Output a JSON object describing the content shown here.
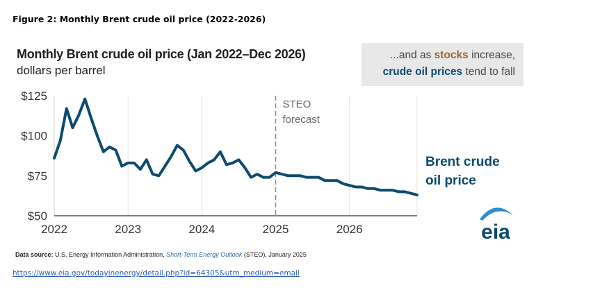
{
  "figure_caption": "Figure 2: Monthly Brent crude oil price (2022-2026)",
  "callout": {
    "line1_prefix": "...and as ",
    "line1_keyword": "stocks",
    "line1_suffix": " increase,",
    "line2_keyword": "crude oil prices",
    "line2_suffix": " tend to fall",
    "keyword_color_1": "#a0632e",
    "keyword_color_2": "#0c4a6e"
  },
  "source": {
    "label": "Data source:",
    "text1": " U.S. Energy Information Administration, ",
    "italic": "Short-Term Energy Outlook",
    "text2": " (STEO), January 2025"
  },
  "url": "https://www.eia.gov/todayinenergy/detail.php?id=64305&utm_medium=email",
  "logo": {
    "text": "eia",
    "icon": "eia-logo-icon",
    "color": "#0c4a6e",
    "arc_color": "#2a8fd0"
  },
  "chart_data": {
    "type": "line",
    "title": "Monthly Brent crude oil price (Jan 2022–Dec 2026)",
    "subtitle": "dollars per barrel",
    "x_ticks": [
      "2022",
      "2023",
      "2024",
      "2025",
      "2026"
    ],
    "y_ticks": [
      "$125",
      "$100",
      "$75",
      "$50"
    ],
    "y_tick_values": [
      125,
      100,
      75,
      50
    ],
    "ylim": [
      50,
      125
    ],
    "x_start": "Jan 2022",
    "x_end": "Dec 2026",
    "grid": "vertical",
    "line_color": "#0c4a6e",
    "series": [
      {
        "name": "Brent crude oil price",
        "values": [
          86,
          97,
          117,
          105,
          113,
          123,
          111,
          100,
          90,
          93,
          91,
          81,
          83,
          83,
          79,
          85,
          76,
          75,
          81,
          87,
          94,
          91,
          84,
          78,
          80,
          83,
          85,
          90,
          82,
          83,
          85,
          80,
          74,
          76,
          74,
          74,
          77,
          76,
          75,
          75,
          75,
          74,
          74,
          74,
          72,
          72,
          72,
          70,
          69,
          68,
          68,
          67,
          67,
          66,
          66,
          66,
          65,
          65,
          64,
          63
        ]
      }
    ],
    "forecast_start": "Jan 2025",
    "forecast_label": [
      "STEO",
      "forecast"
    ]
  }
}
